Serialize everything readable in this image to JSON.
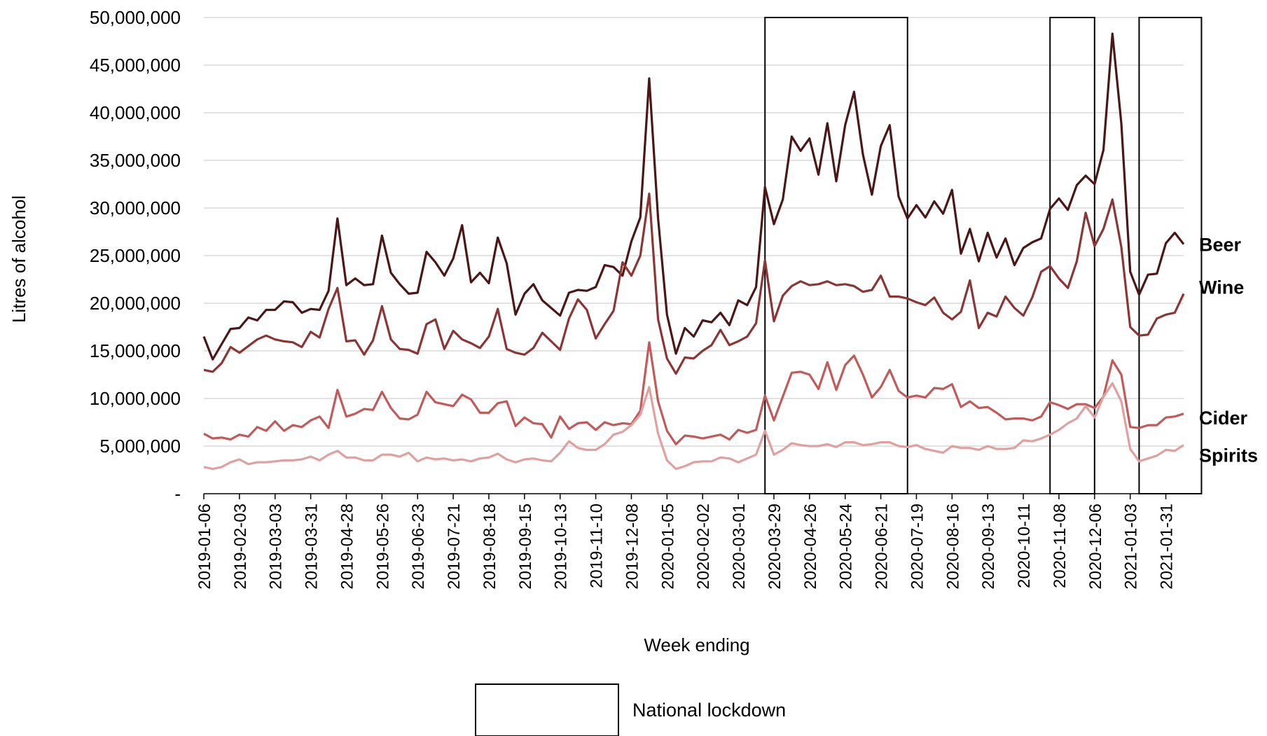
{
  "chart_data": {
    "type": "line",
    "title": "",
    "xlabel": "Week ending",
    "ylabel": "Litres of alcohol",
    "ylim": [
      0,
      50000000
    ],
    "grid": true,
    "y_ticks": [
      {
        "value": 0,
        "label": "-"
      },
      {
        "value": 5000000,
        "label": "5,000,000"
      },
      {
        "value": 10000000,
        "label": "10,000,000"
      },
      {
        "value": 15000000,
        "label": "15,000,000"
      },
      {
        "value": 20000000,
        "label": "20,000,000"
      },
      {
        "value": 25000000,
        "label": "25,000,000"
      },
      {
        "value": 30000000,
        "label": "30,000,000"
      },
      {
        "value": 35000000,
        "label": "35,000,000"
      },
      {
        "value": 40000000,
        "label": "40,000,000"
      },
      {
        "value": 45000000,
        "label": "45,000,000"
      },
      {
        "value": 50000000,
        "label": "50,000,000"
      }
    ],
    "x_tick_labels": [
      "2019-01-06",
      "2019-02-03",
      "2019-03-03",
      "2019-03-31",
      "2019-04-28",
      "2019-05-26",
      "2019-06-23",
      "2019-07-21",
      "2019-08-18",
      "2019-09-15",
      "2019-10-13",
      "2019-11-10",
      "2019-12-08",
      "2020-01-05",
      "2020-02-02",
      "2020-03-01",
      "2020-03-29",
      "2020-04-26",
      "2020-05-24",
      "2020-06-21",
      "2020-07-19",
      "2020-08-16",
      "2020-09-13",
      "2020-10-11",
      "2020-11-08",
      "2020-12-06",
      "2021-01-03",
      "2021-01-31"
    ],
    "x_start": "2019-01-06",
    "x_end": "2021-02-21",
    "x_step_days": 7,
    "series": [
      {
        "name": "Beer",
        "color": "#4a1616",
        "values": [
          16500000,
          14100000,
          15700000,
          17300000,
          17400000,
          18500000,
          18200000,
          19300000,
          19300000,
          20200000,
          20100000,
          19000000,
          19400000,
          19300000,
          21300000,
          28900000,
          21900000,
          22600000,
          21900000,
          22000000,
          27100000,
          23200000,
          22000000,
          21000000,
          21100000,
          25400000,
          24300000,
          22900000,
          24700000,
          28200000,
          22200000,
          23200000,
          22100000,
          26900000,
          24200000,
          18800000,
          21000000,
          22000000,
          20300000,
          19500000,
          18700000,
          21100000,
          21400000,
          21300000,
          21700000,
          24000000,
          23800000,
          22900000,
          26500000,
          29000000,
          43600000,
          28900000,
          18800000,
          14700000,
          17400000,
          16500000,
          18200000,
          18000000,
          19000000,
          17700000,
          20300000,
          19800000,
          21700000,
          32200000,
          28300000,
          30900000,
          37500000,
          36000000,
          37300000,
          33500000,
          38900000,
          32800000,
          38700000,
          42200000,
          35600000,
          31400000,
          36500000,
          38700000,
          31200000,
          28900000,
          30300000,
          29000000,
          30700000,
          29400000,
          31900000,
          25200000,
          27800000,
          24400000,
          27400000,
          24800000,
          26800000,
          24000000,
          25800000,
          26400000,
          26800000,
          29900000,
          31000000,
          29800000,
          32400000,
          33400000,
          32500000,
          36100000,
          48300000,
          38900000,
          23300000,
          20900000,
          23000000,
          23100000,
          26300000,
          27400000,
          26200000
        ]
      },
      {
        "name": "Wine",
        "color": "#8c3535",
        "values": [
          13000000,
          12800000,
          13700000,
          15400000,
          14800000,
          15500000,
          16200000,
          16600000,
          16200000,
          16000000,
          15900000,
          15400000,
          17000000,
          16400000,
          19400000,
          21600000,
          16000000,
          16100000,
          14600000,
          16100000,
          19700000,
          16200000,
          15200000,
          15100000,
          14700000,
          17800000,
          18300000,
          15200000,
          17100000,
          16200000,
          15800000,
          15300000,
          16500000,
          19400000,
          15200000,
          14800000,
          14600000,
          15300000,
          16900000,
          16000000,
          15100000,
          18400000,
          20400000,
          19300000,
          16300000,
          17800000,
          19200000,
          24300000,
          22900000,
          25000000,
          31500000,
          18300000,
          14200000,
          12600000,
          14300000,
          14200000,
          15000000,
          15600000,
          17200000,
          15600000,
          16000000,
          16500000,
          17900000,
          24500000,
          18100000,
          20800000,
          21800000,
          22300000,
          21900000,
          22000000,
          22300000,
          21900000,
          22000000,
          21800000,
          21200000,
          21400000,
          22900000,
          20700000,
          20700000,
          20500000,
          20100000,
          19800000,
          20600000,
          19000000,
          18300000,
          19100000,
          22400000,
          17400000,
          19000000,
          18600000,
          20700000,
          19500000,
          18700000,
          20600000,
          23300000,
          23900000,
          22600000,
          21600000,
          24400000,
          29500000,
          26000000,
          27800000,
          30900000,
          25900000,
          17500000,
          16600000,
          16700000,
          18400000,
          18800000,
          19000000,
          21000000
        ]
      },
      {
        "name": "Cider",
        "color": "#c25a5a",
        "values": [
          6300000,
          5800000,
          5900000,
          5700000,
          6200000,
          6000000,
          7000000,
          6600000,
          7600000,
          6600000,
          7200000,
          7000000,
          7700000,
          8100000,
          6900000,
          10900000,
          8100000,
          8400000,
          8900000,
          8800000,
          10700000,
          9000000,
          7900000,
          7800000,
          8300000,
          10700000,
          9600000,
          9400000,
          9200000,
          10400000,
          9900000,
          8500000,
          8500000,
          9500000,
          9700000,
          7100000,
          8000000,
          7400000,
          7300000,
          5900000,
          8100000,
          6800000,
          7400000,
          7500000,
          6700000,
          7500000,
          7200000,
          7400000,
          7300000,
          8700000,
          15900000,
          9700000,
          6600000,
          5200000,
          6100000,
          6000000,
          5800000,
          6000000,
          6200000,
          5700000,
          6700000,
          6400000,
          6700000,
          10300000,
          7700000,
          10200000,
          12700000,
          12800000,
          12500000,
          11000000,
          13800000,
          10900000,
          13500000,
          14500000,
          12500000,
          10100000,
          11200000,
          13000000,
          10800000,
          10100000,
          10300000,
          10100000,
          11100000,
          11000000,
          11500000,
          9100000,
          9700000,
          9000000,
          9100000,
          8500000,
          7800000,
          7900000,
          7900000,
          7700000,
          8100000,
          9600000,
          9300000,
          8900000,
          9400000,
          9400000,
          9000000,
          10200000,
          14000000,
          12500000,
          7000000,
          6900000,
          7200000,
          7200000,
          8000000,
          8100000,
          8400000
        ]
      },
      {
        "name": "Spirits",
        "color": "#e0a0a0",
        "values": [
          2800000,
          2600000,
          2800000,
          3300000,
          3600000,
          3100000,
          3300000,
          3300000,
          3400000,
          3500000,
          3500000,
          3600000,
          3900000,
          3500000,
          4100000,
          4500000,
          3800000,
          3800000,
          3500000,
          3500000,
          4100000,
          4100000,
          3900000,
          4300000,
          3400000,
          3800000,
          3600000,
          3700000,
          3500000,
          3600000,
          3400000,
          3700000,
          3800000,
          4200000,
          3600000,
          3300000,
          3600000,
          3700000,
          3500000,
          3400000,
          4300000,
          5500000,
          4800000,
          4600000,
          4600000,
          5200000,
          6200000,
          6500000,
          7200000,
          8300000,
          11200000,
          6300000,
          3500000,
          2600000,
          2900000,
          3300000,
          3400000,
          3400000,
          3800000,
          3700000,
          3300000,
          3700000,
          4100000,
          6600000,
          4100000,
          4600000,
          5300000,
          5100000,
          5000000,
          5000000,
          5200000,
          4900000,
          5400000,
          5400000,
          5100000,
          5200000,
          5400000,
          5400000,
          5000000,
          4900000,
          5100000,
          4700000,
          4500000,
          4300000,
          5000000,
          4800000,
          4800000,
          4600000,
          5000000,
          4700000,
          4700000,
          4800000,
          5600000,
          5500000,
          5800000,
          6200000,
          6700000,
          7400000,
          7900000,
          9200000,
          8000000,
          10200000,
          11600000,
          9700000,
          4700000,
          3400000,
          3700000,
          4000000,
          4600000,
          4500000,
          5100000
        ]
      }
    ],
    "lockdowns": [
      {
        "start": "2020-03-22",
        "end": "2020-07-12"
      },
      {
        "start": "2020-11-01",
        "end": "2020-12-06"
      },
      {
        "start": "2021-01-10",
        "end": "2021-02-28"
      }
    ],
    "legend": {
      "label": "National lockdown",
      "placement": "bottom"
    }
  }
}
